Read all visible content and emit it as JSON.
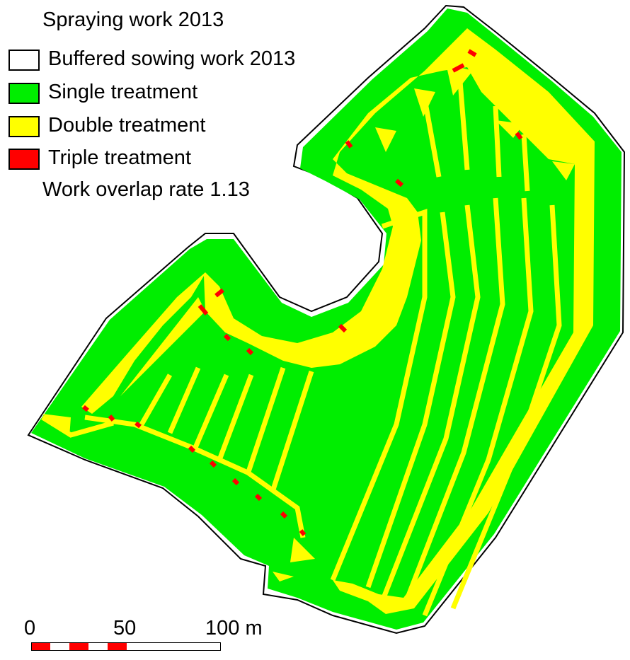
{
  "map": {
    "title": "Spraying work 2013",
    "overlap_text": "Work overlap rate 1.13"
  },
  "legend": {
    "items": [
      {
        "label": "Buffered sowing work 2013",
        "color": "#ffffff"
      },
      {
        "label": "Single treatment",
        "color": "#00ee00"
      },
      {
        "label": "Double treatment",
        "color": "#ffff00"
      },
      {
        "label": "Triple treatment",
        "color": "#ff0000"
      }
    ]
  },
  "scale_bar": {
    "labels": [
      "0",
      "50",
      "100 m"
    ],
    "colors": {
      "fill": "#ff0000",
      "empty": "#ffffff"
    }
  },
  "colors": {
    "single": "#00ee00",
    "double": "#ffff00",
    "triple": "#ff0000",
    "outline": "#000000"
  }
}
